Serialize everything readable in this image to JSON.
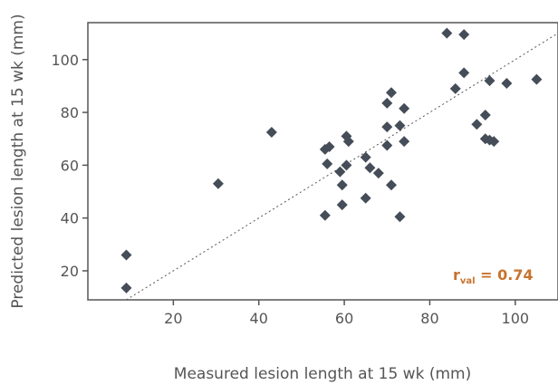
{
  "chart_data": {
    "type": "scatter",
    "xlabel": "Measured lesion length at 15 wk (mm)",
    "ylabel": "Predicted lesion length at 15 wk (mm)",
    "xlim": [
      0,
      110
    ],
    "ylim": [
      9,
      114
    ],
    "xticks": [
      20,
      40,
      60,
      80,
      100
    ],
    "yticks": [
      20,
      40,
      60,
      80,
      100
    ],
    "grid": false,
    "marker_color": "#454d58",
    "line_color": "#555555",
    "annotation": {
      "main": "r",
      "sub": "val",
      "rest": " = 0.74",
      "color": "#c8732e"
    },
    "reference_line": {
      "x": [
        9,
        110
      ],
      "y": [
        9,
        110
      ],
      "style": "dotted"
    },
    "points": [
      [
        9,
        26
      ],
      [
        9,
        13.5
      ],
      [
        30.5,
        53
      ],
      [
        43,
        72.5
      ],
      [
        55.5,
        66
      ],
      [
        55.5,
        41
      ],
      [
        56,
        60.5
      ],
      [
        56.5,
        67
      ],
      [
        59,
        57.5
      ],
      [
        59.5,
        52.5
      ],
      [
        59.5,
        45
      ],
      [
        60.5,
        71
      ],
      [
        61,
        69
      ],
      [
        60.5,
        60
      ],
      [
        65,
        63
      ],
      [
        65,
        47.5
      ],
      [
        66,
        59
      ],
      [
        68,
        57
      ],
      [
        70,
        83.5
      ],
      [
        70,
        74.5
      ],
      [
        70,
        67.5
      ],
      [
        71,
        87.5
      ],
      [
        71,
        52.5
      ],
      [
        73,
        75
      ],
      [
        73,
        40.5
      ],
      [
        74,
        81.5
      ],
      [
        74,
        69
      ],
      [
        84,
        110
      ],
      [
        86,
        89
      ],
      [
        88,
        109.5
      ],
      [
        88,
        95
      ],
      [
        91,
        75.5
      ],
      [
        93,
        79
      ],
      [
        93,
        70
      ],
      [
        94,
        92
      ],
      [
        94,
        69.5
      ],
      [
        95,
        69
      ],
      [
        98,
        91
      ],
      [
        105,
        92.5
      ]
    ]
  }
}
